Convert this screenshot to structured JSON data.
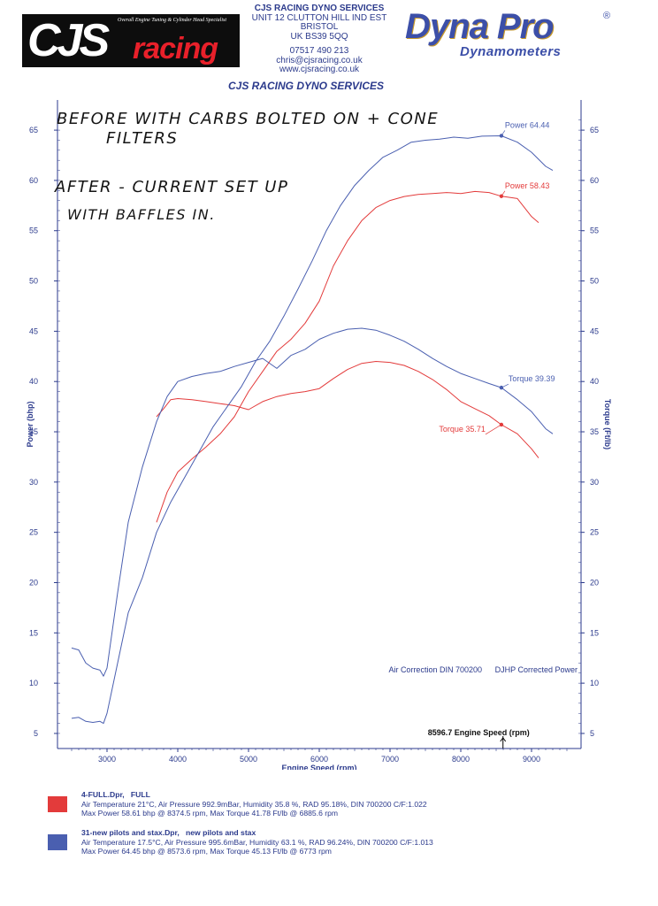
{
  "header": {
    "logo_cjs": {
      "main": "CJS",
      "accent": "racing",
      "tagline": "Overall Engine Tuning & Cylinder Head Specialist"
    },
    "address_lines": [
      "CJS RACING DYNO SERVICES",
      "UNIT 12 CLUTTON HILL IND EST",
      "BRISTOL",
      "UK BS39 5QQ"
    ],
    "contact_lines": [
      "07517 490 213",
      "chris@cjsracing.co.uk",
      "www.cjsracing.co.uk"
    ],
    "logo_dyna": {
      "main": "Dyna Pro",
      "reg": "®",
      "sub": "Dynamometers"
    },
    "services_title": "CJS RACING DYNO SERVICES"
  },
  "handwriting": {
    "lines": [
      "BEFORE WITH CARBS BOLTED ON + CONE",
      "FILTERS",
      "AFTER - CURRENT SET UP",
      "WITH BAFFLES IN."
    ]
  },
  "chart_data": {
    "type": "line",
    "xlabel": "Engine Speed (rpm)",
    "ylabel_left": "Power (bhp)",
    "ylabel_right": "Torque (Ft/lb)",
    "xlim": [
      2300,
      9700
    ],
    "ylim_left": [
      3.5,
      68
    ],
    "ylim_right": [
      3.5,
      68
    ],
    "x_ticks": [
      3000,
      4000,
      5000,
      6000,
      7000,
      8000,
      9000
    ],
    "y_ticks_left": [
      5,
      10,
      15,
      20,
      25,
      30,
      35,
      40,
      45,
      50,
      55,
      60,
      65
    ],
    "y_ticks_right": [
      5,
      10,
      15,
      20,
      25,
      30,
      35,
      40,
      45,
      50,
      55,
      60,
      65
    ],
    "grid": false,
    "colors": {
      "red": "#e33b3b",
      "blue": "#4a5fb0",
      "axis": "#2b3a8c"
    },
    "series": [
      {
        "name": "4-FULL.Dpr",
        "color": "#e33b3b",
        "curve": "power",
        "points": [
          [
            3700,
            26
          ],
          [
            3850,
            29
          ],
          [
            4000,
            31
          ],
          [
            4200,
            32.3
          ],
          [
            4400,
            33.5
          ],
          [
            4600,
            34.8
          ],
          [
            4800,
            36.5
          ],
          [
            5000,
            39
          ],
          [
            5200,
            41
          ],
          [
            5400,
            43
          ],
          [
            5600,
            44.2
          ],
          [
            5800,
            45.8
          ],
          [
            6000,
            48
          ],
          [
            6200,
            51.5
          ],
          [
            6400,
            54
          ],
          [
            6600,
            56
          ],
          [
            6800,
            57.3
          ],
          [
            7000,
            58
          ],
          [
            7200,
            58.4
          ],
          [
            7400,
            58.6
          ],
          [
            7600,
            58.7
          ],
          [
            7800,
            58.8
          ],
          [
            8000,
            58.7
          ],
          [
            8200,
            58.9
          ],
          [
            8400,
            58.8
          ],
          [
            8574,
            58.43
          ],
          [
            8800,
            58.2
          ],
          [
            9000,
            56.4
          ],
          [
            9100,
            55.8
          ]
        ]
      },
      {
        "name": "4-FULL.Dpr",
        "color": "#e33b3b",
        "curve": "torque",
        "points": [
          [
            3700,
            36.5
          ],
          [
            3800,
            37.3
          ],
          [
            3900,
            38.2
          ],
          [
            4000,
            38.3
          ],
          [
            4200,
            38.2
          ],
          [
            4400,
            38
          ],
          [
            4600,
            37.8
          ],
          [
            4800,
            37.6
          ],
          [
            5000,
            37.2
          ],
          [
            5200,
            38
          ],
          [
            5400,
            38.5
          ],
          [
            5600,
            38.8
          ],
          [
            5800,
            39
          ],
          [
            6000,
            39.3
          ],
          [
            6200,
            40.3
          ],
          [
            6400,
            41.2
          ],
          [
            6600,
            41.8
          ],
          [
            6800,
            42
          ],
          [
            7000,
            41.9
          ],
          [
            7200,
            41.6
          ],
          [
            7400,
            41
          ],
          [
            7600,
            40.2
          ],
          [
            7800,
            39.2
          ],
          [
            8000,
            38
          ],
          [
            8200,
            37.3
          ],
          [
            8400,
            36.6
          ],
          [
            8574,
            35.71
          ],
          [
            8800,
            34.8
          ],
          [
            9000,
            33.3
          ],
          [
            9100,
            32.4
          ]
        ]
      },
      {
        "name": "31-new pilots and stax.Dpr",
        "color": "#4a5fb0",
        "curve": "power",
        "points": [
          [
            2500,
            6.5
          ],
          [
            2600,
            6.6
          ],
          [
            2700,
            6.2
          ],
          [
            2800,
            6.1
          ],
          [
            2900,
            6.2
          ],
          [
            2950,
            6
          ],
          [
            3000,
            7
          ],
          [
            3150,
            12
          ],
          [
            3300,
            17
          ],
          [
            3500,
            20.5
          ],
          [
            3700,
            25
          ],
          [
            3900,
            28
          ],
          [
            4100,
            30.5
          ],
          [
            4300,
            33
          ],
          [
            4500,
            35.5
          ],
          [
            4700,
            37.5
          ],
          [
            4900,
            39.5
          ],
          [
            5100,
            42
          ],
          [
            5300,
            44
          ],
          [
            5500,
            46.5
          ],
          [
            5700,
            49.2
          ],
          [
            5900,
            52
          ],
          [
            6100,
            55
          ],
          [
            6300,
            57.5
          ],
          [
            6500,
            59.5
          ],
          [
            6700,
            61
          ],
          [
            6900,
            62.3
          ],
          [
            7100,
            63
          ],
          [
            7300,
            63.8
          ],
          [
            7500,
            64
          ],
          [
            7700,
            64.1
          ],
          [
            7900,
            64.3
          ],
          [
            8100,
            64.2
          ],
          [
            8300,
            64.4
          ],
          [
            8574,
            64.44
          ],
          [
            8800,
            63.8
          ],
          [
            9000,
            62.8
          ],
          [
            9200,
            61.4
          ],
          [
            9300,
            61
          ]
        ]
      },
      {
        "name": "31-new pilots and stax.Dpr",
        "color": "#4a5fb0",
        "curve": "torque",
        "points": [
          [
            2500,
            13.5
          ],
          [
            2600,
            13.3
          ],
          [
            2700,
            12
          ],
          [
            2800,
            11.5
          ],
          [
            2900,
            11.3
          ],
          [
            2950,
            10.7
          ],
          [
            3000,
            11.5
          ],
          [
            3150,
            19
          ],
          [
            3300,
            26
          ],
          [
            3500,
            31.5
          ],
          [
            3700,
            36
          ],
          [
            3850,
            38.5
          ],
          [
            4000,
            40
          ],
          [
            4200,
            40.5
          ],
          [
            4400,
            40.8
          ],
          [
            4600,
            41
          ],
          [
            4800,
            41.5
          ],
          [
            5000,
            41.9
          ],
          [
            5200,
            42.3
          ],
          [
            5400,
            41.3
          ],
          [
            5600,
            42.6
          ],
          [
            5800,
            43.2
          ],
          [
            6000,
            44.2
          ],
          [
            6200,
            44.8
          ],
          [
            6400,
            45.2
          ],
          [
            6600,
            45.3
          ],
          [
            6800,
            45.1
          ],
          [
            7000,
            44.6
          ],
          [
            7200,
            44
          ],
          [
            7400,
            43.2
          ],
          [
            7600,
            42.3
          ],
          [
            7800,
            41.5
          ],
          [
            8000,
            40.8
          ],
          [
            8200,
            40.3
          ],
          [
            8400,
            39.8
          ],
          [
            8574,
            39.39
          ],
          [
            8800,
            38.2
          ],
          [
            9000,
            37
          ],
          [
            9200,
            35.3
          ],
          [
            9300,
            34.8
          ]
        ]
      }
    ],
    "annotations": {
      "blue_power": {
        "label": "Power 64.44",
        "x": 8574,
        "y": 64.44
      },
      "red_power": {
        "label": "Power 58.43",
        "x": 8574,
        "y": 58.43
      },
      "blue_torque": {
        "label": "Torque 39.39",
        "x": 8574,
        "y": 39.39
      },
      "red_torque": {
        "label": "Torque 35.71",
        "x": 8574,
        "y": 35.71
      }
    },
    "air_correction": "Air Correction DIN 700200",
    "corrected_power": "DJHP Corrected Power",
    "cursor_label": "8596.7 Engine Speed (rpm)",
    "cursor_x": 8596.7
  },
  "legend": [
    {
      "name": "4-FULL.Dpr,",
      "desc": "FULL",
      "color": "#e33b3b",
      "line2": "Air Temperature 21°C, Air Pressure 992.9mBar, Humidity 35.8 %, RAD 95.18%,   DIN 700200  C/F:1.022",
      "line3": "Max Power 58.61 bhp @ 8374.5 rpm, Max Torque 41.78 Ft/lb @ 6885.6 rpm"
    },
    {
      "name": "31-new pilots and stax.Dpr,",
      "desc": "new pilots and stax",
      "color": "#4a5fb0",
      "line2": "Air Temperature 17.5°C, Air Pressure 995.6mBar, Humidity 63.1 %, RAD 96.24%,   DIN 700200  C/F:1.013",
      "line3": "Max Power 64.45 bhp @ 8573.6 rpm, Max Torque 45.13 Ft/lb @ 6773 rpm"
    }
  ]
}
